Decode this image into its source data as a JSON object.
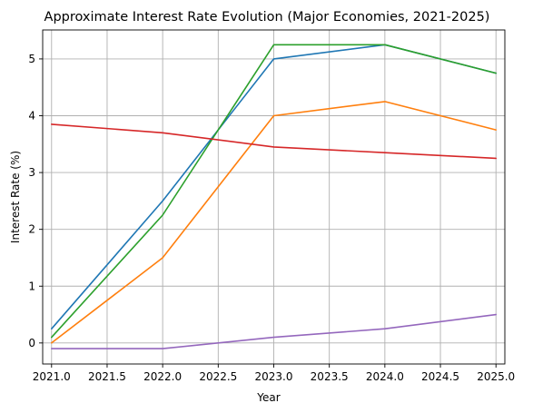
{
  "chart_data": {
    "type": "line",
    "title": "Approximate Interest Rate Evolution (Major Economies, 2021-2025)",
    "xlabel": "Year",
    "ylabel": "Interest Rate (%)",
    "x": [
      2021,
      2022,
      2023,
      2024,
      2025
    ],
    "xlim": [
      2020.92,
      2025.08
    ],
    "ylim": [
      -0.37,
      5.51
    ],
    "x_ticks": [
      2021.0,
      2021.5,
      2022.0,
      2022.5,
      2023.0,
      2023.5,
      2024.0,
      2024.5,
      2025.0
    ],
    "x_tick_labels": [
      "2021.0",
      "2021.5",
      "2022.0",
      "2022.5",
      "2023.0",
      "2023.5",
      "2024.0",
      "2024.5",
      "2025.0"
    ],
    "y_ticks": [
      0,
      1,
      2,
      3,
      4,
      5
    ],
    "y_tick_labels": [
      "0",
      "1",
      "2",
      "3",
      "4",
      "5"
    ],
    "grid": true,
    "legend": "none",
    "series": [
      {
        "color": "#1f77b4",
        "values": [
          0.25,
          2.5,
          5.0,
          5.25,
          4.75
        ]
      },
      {
        "color": "#ff7f0e",
        "values": [
          0.0,
          1.5,
          4.0,
          4.25,
          3.75
        ]
      },
      {
        "color": "#2ca02c",
        "values": [
          0.1,
          2.25,
          5.25,
          5.25,
          4.75
        ]
      },
      {
        "color": "#d62728",
        "values": [
          3.85,
          3.7,
          3.45,
          3.35,
          3.25
        ]
      },
      {
        "color": "#9467bd",
        "values": [
          -0.1,
          -0.1,
          0.1,
          0.25,
          0.5
        ]
      }
    ]
  }
}
